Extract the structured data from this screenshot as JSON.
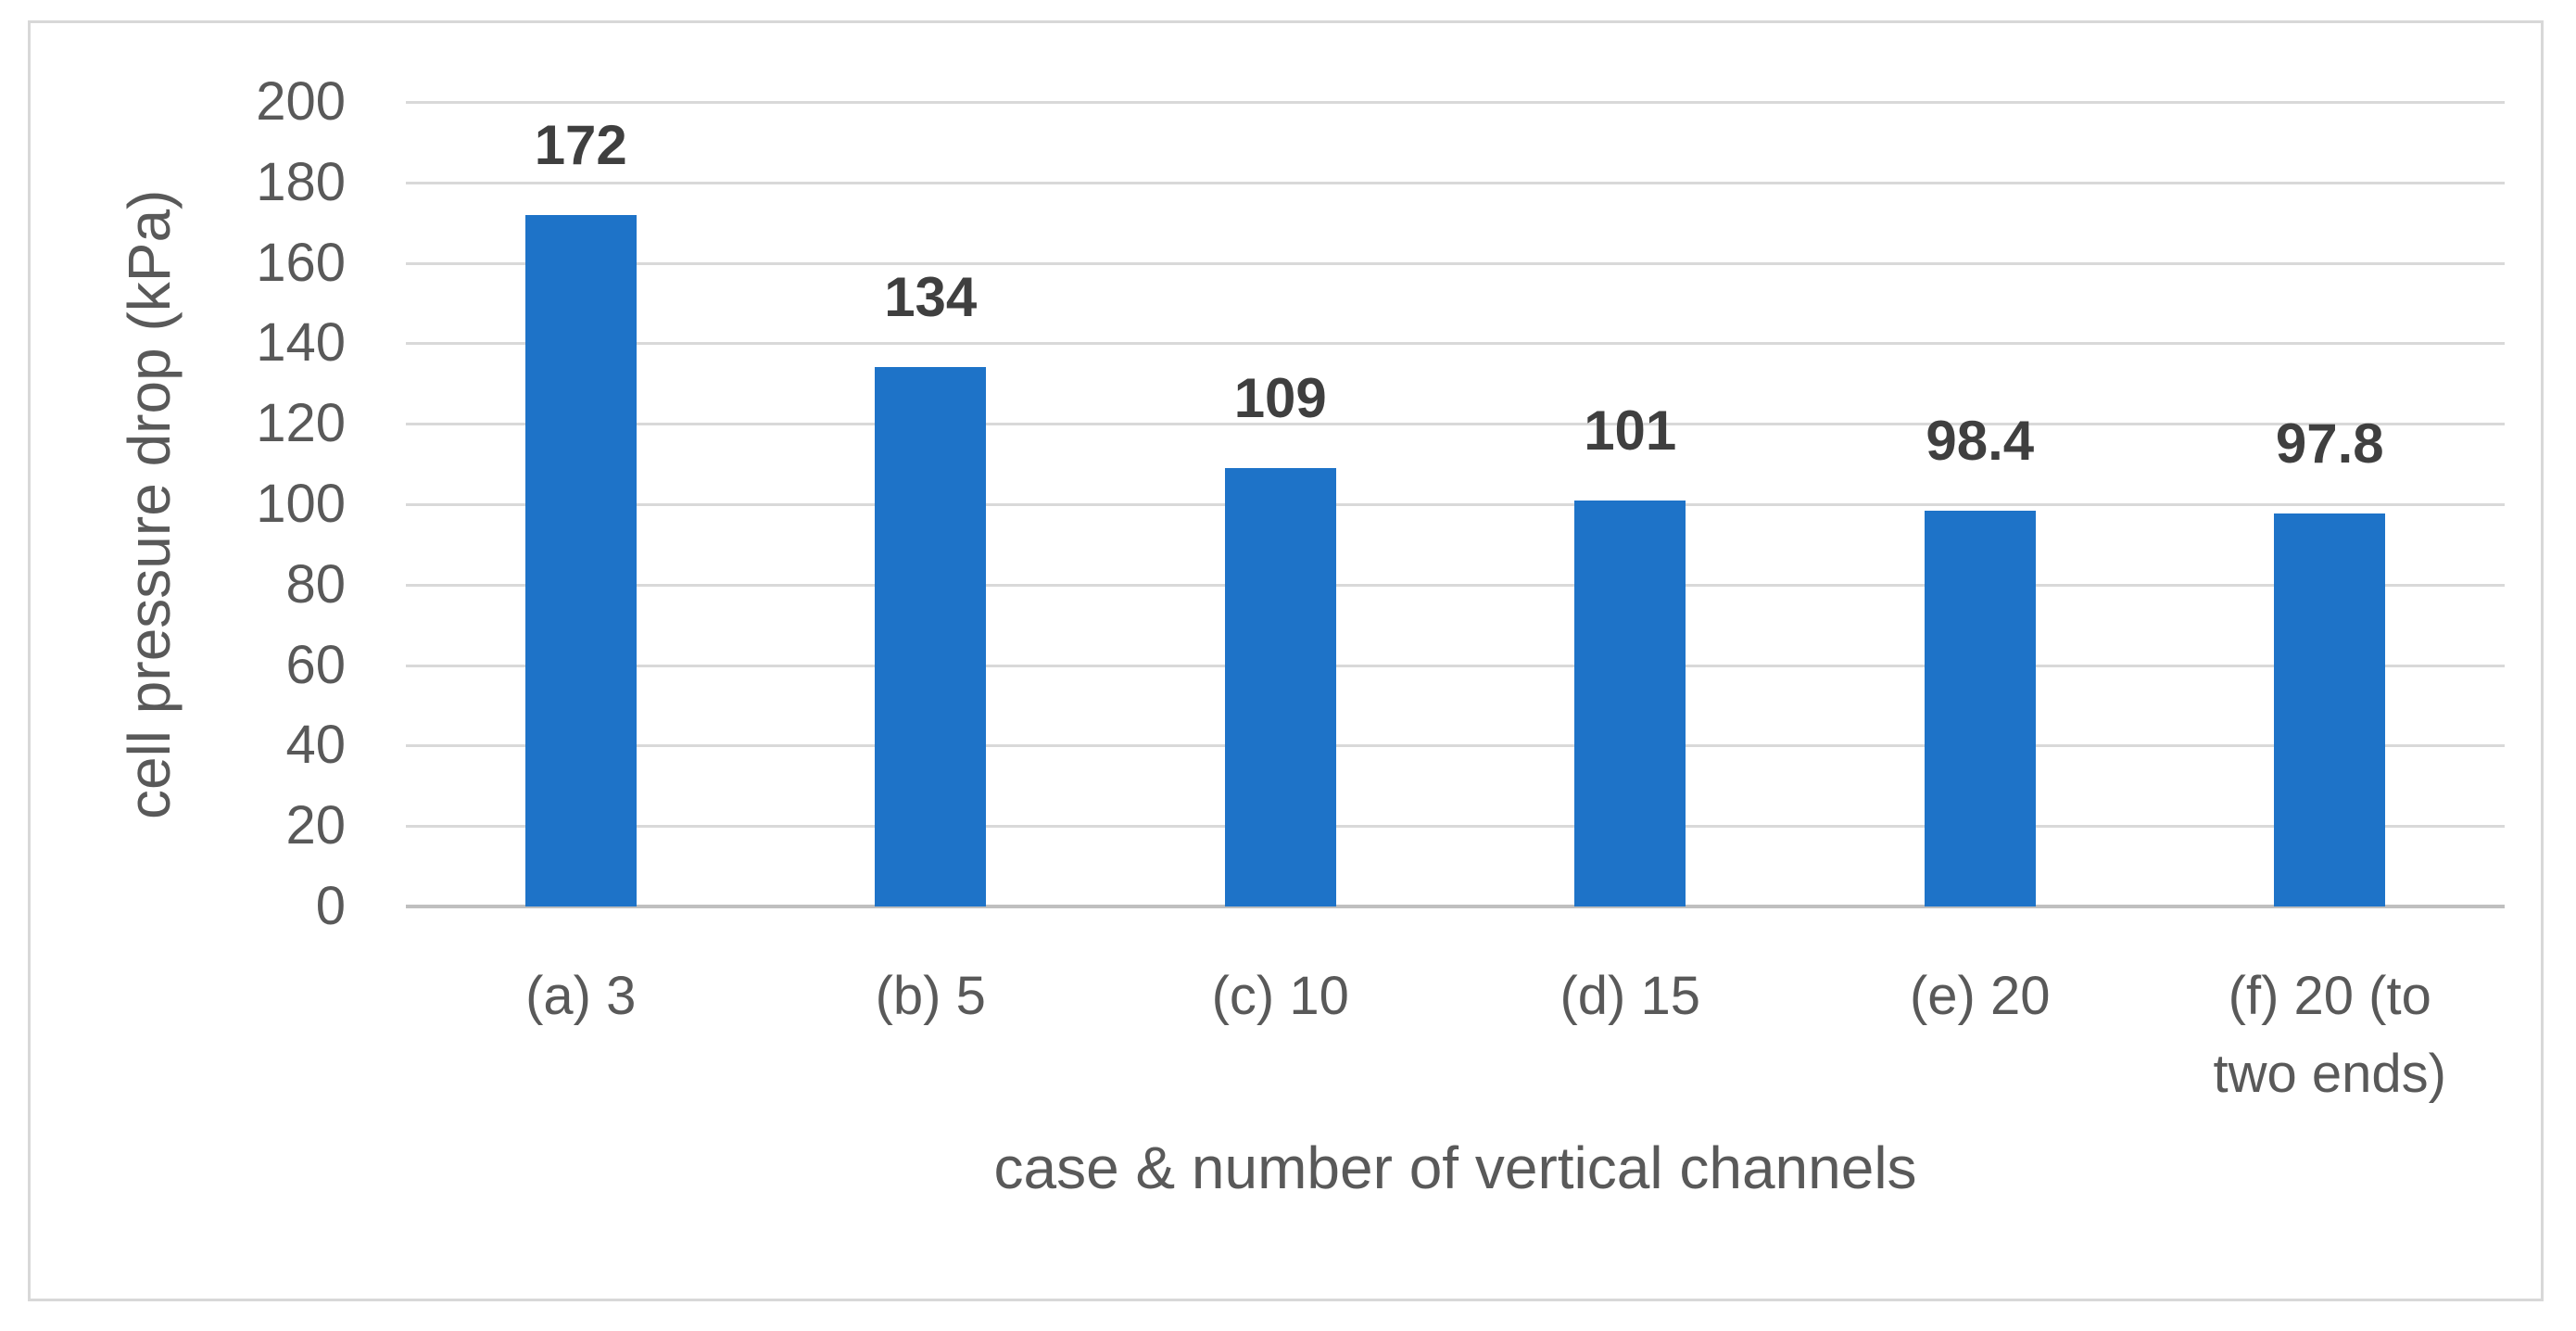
{
  "chart_data": {
    "type": "bar",
    "title": "",
    "categories": [
      "(a) 3",
      "(b) 5",
      "(c) 10",
      "(d) 15",
      "(e) 20",
      "(f) 20 (to two ends)"
    ],
    "values": [
      172,
      134,
      109,
      101,
      98.4,
      97.8
    ],
    "data_labels": [
      "172",
      "134",
      "109",
      "101",
      "98.4",
      "97.8"
    ],
    "xlabel": "case & number of vertical channels",
    "ylabel": "cell pressure drop (kPa)",
    "ylim": [
      0,
      200
    ],
    "yticks": [
      0,
      20,
      40,
      60,
      80,
      100,
      120,
      140,
      160,
      180,
      200
    ],
    "grid": "horizontal",
    "legend": "none",
    "bar_color": "#1e73c8"
  },
  "colors": {
    "bar": "#1e73c8",
    "gridline": "#d9d9d9",
    "axis_line": "#bfbfbf",
    "tick_text": "#595959",
    "axis_title_text": "#595959",
    "data_label_text": "#3f3f3f",
    "frame_border": "#d8d8d8",
    "background": "#ffffff"
  }
}
